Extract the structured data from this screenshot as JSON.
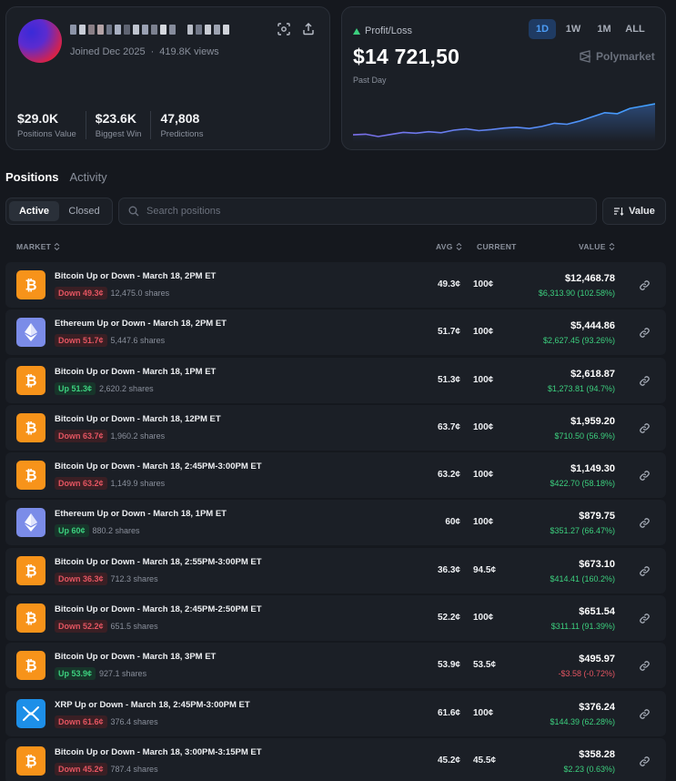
{
  "profile": {
    "joined": "Joined Dec 2025",
    "separator": "·",
    "views": "419.8K views",
    "stats": [
      {
        "value": "$29.0K",
        "label": "Positions Value"
      },
      {
        "value": "$23.6K",
        "label": "Biggest Win"
      },
      {
        "value": "47,808",
        "label": "Predictions"
      }
    ]
  },
  "pnl": {
    "label": "Profit/Loss",
    "value": "$14 721,50",
    "period": "Past Day",
    "ranges": [
      "1D",
      "1W",
      "1M",
      "ALL"
    ],
    "active_range": "1D",
    "brand": "Polymarket",
    "accent": "#4b9cf5"
  },
  "pnl_chart": {
    "type": "line",
    "values": [
      0,
      0.3,
      -0.8,
      0.2,
      1.2,
      0.8,
      1.5,
      1.0,
      2.2,
      2.8,
      2.0,
      2.5,
      3.2,
      3.6,
      3.0,
      4.0,
      5.5,
      5.0,
      6.5,
      8.5,
      10.5,
      10.0,
      12.5,
      13.6,
      14.7
    ]
  },
  "tabs": {
    "positions": "Positions",
    "activity": "Activity"
  },
  "filters": {
    "active": "Active",
    "closed": "Closed",
    "search_placeholder": "Search positions",
    "sort_label": "Value"
  },
  "table": {
    "headers": {
      "market": "MARKET",
      "avg": "AVG",
      "current": "CURRENT",
      "value": "VALUE"
    },
    "rows": [
      {
        "coin": "btc",
        "title": "Bitcoin Up or Down - March 18, 2PM ET",
        "side": "down",
        "badge": "Down 49.3¢",
        "shares": "12,475.0 shares",
        "avg": "49.3¢",
        "current": "100¢",
        "value": "$12,468.78",
        "change": "$6,313.90 (102.58%)",
        "positive": true
      },
      {
        "coin": "eth",
        "title": "Ethereum Up or Down - March 18, 2PM ET",
        "side": "down",
        "badge": "Down 51.7¢",
        "shares": "5,447.6 shares",
        "avg": "51.7¢",
        "current": "100¢",
        "value": "$5,444.86",
        "change": "$2,627.45 (93.26%)",
        "positive": true
      },
      {
        "coin": "btc",
        "title": "Bitcoin Up or Down - March 18, 1PM ET",
        "side": "up",
        "badge": "Up 51.3¢",
        "shares": "2,620.2 shares",
        "avg": "51.3¢",
        "current": "100¢",
        "value": "$2,618.87",
        "change": "$1,273.81 (94.7%)",
        "positive": true
      },
      {
        "coin": "btc",
        "title": "Bitcoin Up or Down - March 18, 12PM ET",
        "side": "down",
        "badge": "Down 63.7¢",
        "shares": "1,960.2 shares",
        "avg": "63.7¢",
        "current": "100¢",
        "value": "$1,959.20",
        "change": "$710.50 (56.9%)",
        "positive": true
      },
      {
        "coin": "btc",
        "title": "Bitcoin Up or Down - March 18, 2:45PM-3:00PM ET",
        "side": "down",
        "badge": "Down 63.2¢",
        "shares": "1,149.9 shares",
        "avg": "63.2¢",
        "current": "100¢",
        "value": "$1,149.30",
        "change": "$422.70 (58.18%)",
        "positive": true
      },
      {
        "coin": "eth",
        "title": "Ethereum Up or Down - March 18, 1PM ET",
        "side": "up",
        "badge": "Up 60¢",
        "shares": "880.2 shares",
        "avg": "60¢",
        "current": "100¢",
        "value": "$879.75",
        "change": "$351.27 (66.47%)",
        "positive": true
      },
      {
        "coin": "btc",
        "title": "Bitcoin Up or Down - March 18, 2:55PM-3:00PM ET",
        "side": "down",
        "badge": "Down 36.3¢",
        "shares": "712.3 shares",
        "avg": "36.3¢",
        "current": "94.5¢",
        "value": "$673.10",
        "change": "$414.41 (160.2%)",
        "positive": true
      },
      {
        "coin": "btc",
        "title": "Bitcoin Up or Down - March 18, 2:45PM-2:50PM ET",
        "side": "down",
        "badge": "Down 52.2¢",
        "shares": "651.5 shares",
        "avg": "52.2¢",
        "current": "100¢",
        "value": "$651.54",
        "change": "$311.11 (91.39%)",
        "positive": true
      },
      {
        "coin": "btc",
        "title": "Bitcoin Up or Down - March 18, 3PM ET",
        "side": "up",
        "badge": "Up 53.9¢",
        "shares": "927.1 shares",
        "avg": "53.9¢",
        "current": "53.5¢",
        "value": "$495.97",
        "change": "-$3.58 (-0.72%)",
        "positive": false
      },
      {
        "coin": "xrp",
        "title": "XRP Up or Down - March 18, 2:45PM-3:00PM ET",
        "side": "down",
        "badge": "Down 61.6¢",
        "shares": "376.4 shares",
        "avg": "61.6¢",
        "current": "100¢",
        "value": "$376.24",
        "change": "$144.39 (62.28%)",
        "positive": true
      },
      {
        "coin": "btc",
        "title": "Bitcoin Up or Down - March 18, 3:00PM-3:15PM ET",
        "side": "down",
        "badge": "Down 45.2¢",
        "shares": "787.4 shares",
        "avg": "45.2¢",
        "current": "45.5¢",
        "value": "$358.28",
        "change": "$2.23 (0.63%)",
        "positive": true
      }
    ]
  }
}
